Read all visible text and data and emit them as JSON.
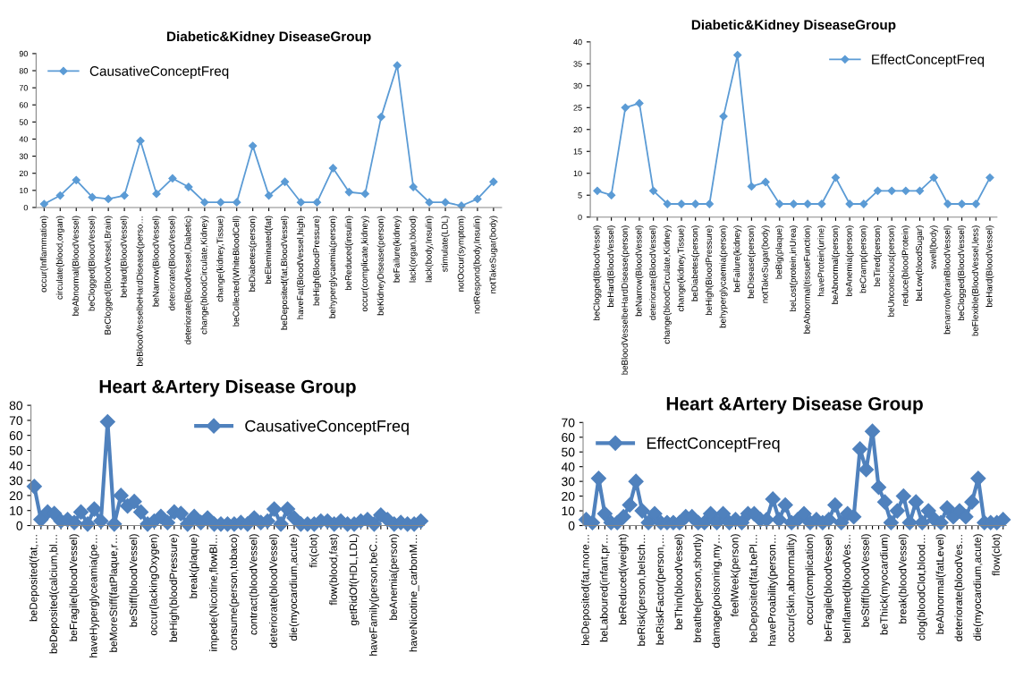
{
  "chart_data": [
    {
      "type": "line",
      "title": "Diabetic&Kidney DiseaseGroup",
      "categories": [
        "occur(Inflammation)",
        "circulate(blood,organ)",
        "beAbnormal(BloodVessel)",
        "beClogged(BloodVessel)",
        "BeClogged(BloodVessel,Brain)",
        "beHard(BloodVessel)",
        "beBloodVesselbeHardDisease(perso…",
        "beNarrow(BloodVessel)",
        "deteriorate(BloodVessel)",
        "deteriorate(BloodVessel,Diabetic)",
        "change(bloodCirculate,Kidney)",
        "change(kidney,Tissue)",
        "beCollected(WhiteBloodCell)",
        "beDiabetes(person)",
        "beEleminated(fat)",
        "beDeposited(fat,BloodVessel)",
        "haveFat(BloodVessel,high)",
        "beHigh(BloodPressure)",
        "behyperglycaemia(person)",
        "beReduced(insulin)",
        "occur(complicate,kidney)",
        "beKidneyDisease(person)",
        "beFailure(kidney)",
        "lack(organ,blood)",
        "lack(body,Insulin)",
        "stimulate(LDL)",
        "notOccur(symptom)",
        "notRespond(body,Insulin)",
        "notTakeSugar(body)"
      ],
      "series": [
        {
          "name": "CausativeConceptFreq",
          "color": "#5b9bd5",
          "values": [
            2,
            7,
            16,
            6,
            5,
            7,
            39,
            8,
            17,
            12,
            3,
            3,
            3,
            36,
            7,
            15,
            3,
            3,
            23,
            9,
            8,
            53,
            83,
            12,
            3,
            3,
            1,
            5,
            15
          ]
        }
      ],
      "ylim": [
        0,
        90
      ],
      "yticks": [
        0,
        10,
        20,
        30,
        40,
        50,
        60,
        70,
        80,
        90
      ],
      "marker": "diamond",
      "legend": "top left"
    },
    {
      "type": "line",
      "title": "Diabetic&Kidney DiseaseGroup",
      "categories": [
        "beClogged(BloodVessel)",
        "beHard(BloodVessel)",
        "beBloodVesselbeHardDisease(person)",
        "beNarrow(BloodVessel)",
        "deteriorate(BloodVessel)",
        "change(bloodCirculate,Kidney)",
        "change(kidney,Tissue)",
        "beDiabetes(person)",
        "beHigh(BloodPressure)",
        "behyperglycaemia(person)",
        "beFailure(kidney)",
        "beDisease(person)",
        "notTakeSugar(body)",
        "beBig(plaque)",
        "beLost(protein,inUrea)",
        "beAbnormal(tissueFunction)",
        "haveProtein(urine)",
        "beAbnormal(person)",
        "beAnemia(person)",
        "beCramp(person)",
        "beTired(person)",
        "beUnconscious(person)",
        "reduce(bloodProtein)",
        "beLow(bloodSugar)",
        "swell(body)",
        "benarrow(brainBloodVessel)",
        "beClogged(BloodVessel)",
        "beFlexible(BloodVessel,less)",
        "beHard(BloodVessel)"
      ],
      "series": [
        {
          "name": "EffectConceptFreq",
          "color": "#5b9bd5",
          "values": [
            6,
            5,
            25,
            26,
            6,
            3,
            3,
            3,
            3,
            23,
            37,
            7,
            8,
            3,
            3,
            3,
            3,
            9,
            3,
            3,
            6,
            6,
            6,
            6,
            9,
            3,
            3,
            3,
            9
          ]
        }
      ],
      "ylim": [
        0,
        40
      ],
      "yticks": [
        0,
        5,
        10,
        15,
        20,
        25,
        30,
        35,
        40
      ],
      "marker": "diamond",
      "legend": "top right"
    },
    {
      "type": "line",
      "title": "Heart &Artery Disease Group",
      "categories": [
        "beDeposited(fat,…",
        null,
        null,
        "beDeposited(calcium,bl…",
        null,
        null,
        "beFragile(bloodVessel)",
        null,
        null,
        "haveHyperglyceamia(pe…",
        null,
        null,
        "beMoreStiff(fatPlaque,r…",
        null,
        null,
        "beStiff(bloodVessel)",
        null,
        null,
        "occur(lackingOxygen)",
        null,
        null,
        "beHigh(bloodPressure)",
        null,
        null,
        "break(plaque)",
        null,
        null,
        "impede(Nicotine,flowBl…",
        null,
        null,
        "consume(person,tobaco)",
        null,
        null,
        "contract(bloodVessel)",
        null,
        null,
        "deteriorate(bloodVessel)",
        null,
        null,
        "die(myocardium,acute)",
        null,
        null,
        "fix(clot)",
        null,
        null,
        "flow(blood,fast)",
        null,
        null,
        "getRidOf(HDL,LDL)",
        null,
        null,
        "haveFamily(person,beC…",
        null,
        null,
        "beAnemia(person)",
        null,
        null,
        "haveNicotine_carbonM…",
        null
      ],
      "series": [
        {
          "name": "CausativeConceptFreq",
          "color": "#4f81bd",
          "values": [
            26,
            4,
            9,
            8,
            3,
            4,
            2,
            9,
            1,
            11,
            3,
            69,
            1,
            20,
            13,
            16,
            9,
            1,
            3,
            6,
            2,
            9,
            8,
            1,
            6,
            2,
            5,
            1,
            1,
            1,
            1,
            2,
            1,
            5,
            2,
            3,
            11,
            1,
            11,
            5,
            1,
            1,
            1,
            3,
            3,
            1,
            3,
            1,
            1,
            3,
            4,
            1,
            7,
            4,
            1,
            2,
            1,
            1,
            3
          ]
        }
      ],
      "ylim": [
        0,
        80
      ],
      "yticks": [
        0,
        10,
        20,
        30,
        40,
        50,
        60,
        70,
        80
      ],
      "marker": "diamond",
      "legend": "top right"
    },
    {
      "type": "line",
      "title": "Heart &Artery Disease Group",
      "categories": [
        "beDeposited(fat,more…",
        null,
        null,
        "beLaboured(infant,pr…",
        null,
        null,
        "beReduced(weight)",
        null,
        null,
        "beRisk(person,beIsch…",
        null,
        null,
        "beRiskFactor(person,…",
        null,
        null,
        "beThin(bloodVessel)",
        null,
        null,
        "breathe(person,shortly)",
        null,
        null,
        "damage(poisoning,my…",
        null,
        null,
        "feelWeek(person)",
        null,
        null,
        "beDeposited(fat,bePl…",
        null,
        null,
        "haveProability(person…",
        null,
        null,
        "occur(skin,abnormality)",
        null,
        null,
        "occur(complication)",
        null,
        null,
        "beFragile(bloodVessel)",
        null,
        null,
        "beInflamed(bloodVes…",
        null,
        null,
        "beStiff(bloodVessel)",
        null,
        null,
        "beThick(myocardium)",
        null,
        null,
        "break(bloodVessel)",
        null,
        null,
        "clog(bloodClot,blood…",
        null,
        null,
        "beAbnormal(fatLevel)",
        null,
        null,
        "deteriorate(bloodVes…",
        null,
        null,
        "die(myocardium,acute)",
        null,
        null,
        "flow(clot)",
        null
      ],
      "series": [
        {
          "name": "EffectConceptFreq",
          "color": "#4f81bd",
          "values": [
            4,
            2,
            32,
            8,
            2,
            2,
            6,
            14,
            30,
            10,
            2,
            8,
            2,
            2,
            2,
            2,
            6,
            6,
            2,
            2,
            8,
            2,
            8,
            2,
            4,
            2,
            8,
            8,
            4,
            4,
            18,
            4,
            14,
            2,
            4,
            8,
            2,
            4,
            2,
            4,
            14,
            2,
            8,
            6,
            52,
            38,
            64,
            26,
            16,
            2,
            10,
            20,
            2,
            16,
            2,
            10,
            4,
            2,
            12,
            6,
            10,
            6,
            16,
            32,
            2,
            2,
            2,
            4
          ]
        }
      ],
      "ylim": [
        0,
        70
      ],
      "yticks": [
        0,
        10,
        20,
        30,
        40,
        50,
        60,
        70
      ],
      "marker": "diamond",
      "legend": "top left"
    }
  ]
}
